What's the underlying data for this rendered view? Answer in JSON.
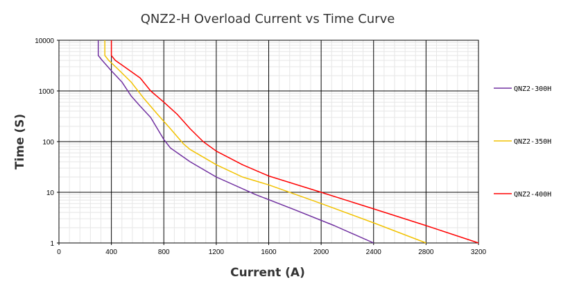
{
  "chart_data": {
    "type": "line",
    "title": "QNZ2-H Overload Current  vs  Time Curve",
    "xlabel": "Current (A)",
    "ylabel": "Time (S)",
    "xlim": [
      0,
      3200
    ],
    "ylim": [
      1,
      10000
    ],
    "yscale": "log",
    "grid": true,
    "legend_position": "right",
    "x_ticks": [
      "0",
      "400",
      "800",
      "1200",
      "1600",
      "2000",
      "2400",
      "2800",
      "3200"
    ],
    "y_ticks": [
      "1",
      "10",
      "100",
      "1000",
      "10000"
    ],
    "series": [
      {
        "name": "QNZ2-300H",
        "color": "#7030a0",
        "points": [
          [
            300,
            10000
          ],
          [
            300,
            5000
          ],
          [
            330,
            4000
          ],
          [
            400,
            2500
          ],
          [
            480,
            1500
          ],
          [
            550,
            800
          ],
          [
            620,
            500
          ],
          [
            700,
            300
          ],
          [
            800,
            110
          ],
          [
            850,
            75
          ],
          [
            1000,
            40
          ],
          [
            1200,
            20
          ],
          [
            1500,
            9
          ],
          [
            1800,
            4.5
          ],
          [
            2100,
            2.2
          ],
          [
            2400,
            1
          ]
        ]
      },
      {
        "name": "QNZ2-350H",
        "color": "#f2c200",
        "points": [
          [
            350,
            10000
          ],
          [
            350,
            5000
          ],
          [
            380,
            4000
          ],
          [
            450,
            2700
          ],
          [
            550,
            1500
          ],
          [
            650,
            700
          ],
          [
            750,
            350
          ],
          [
            850,
            180
          ],
          [
            950,
            90
          ],
          [
            1000,
            70
          ],
          [
            1200,
            35
          ],
          [
            1400,
            20
          ],
          [
            1600,
            14
          ],
          [
            2000,
            6
          ],
          [
            2400,
            2.5
          ],
          [
            2800,
            1
          ]
        ]
      },
      {
        "name": "QNZ2-400H",
        "color": "#ff0000",
        "points": [
          [
            400,
            10000
          ],
          [
            400,
            5000
          ],
          [
            430,
            4000
          ],
          [
            500,
            3000
          ],
          [
            620,
            1800
          ],
          [
            700,
            1000
          ],
          [
            800,
            600
          ],
          [
            900,
            350
          ],
          [
            1000,
            180
          ],
          [
            1100,
            100
          ],
          [
            1200,
            65
          ],
          [
            1400,
            35
          ],
          [
            1600,
            21
          ],
          [
            2000,
            10
          ],
          [
            2400,
            4.7
          ],
          [
            2800,
            2.2
          ],
          [
            3200,
            1
          ]
        ]
      }
    ]
  }
}
